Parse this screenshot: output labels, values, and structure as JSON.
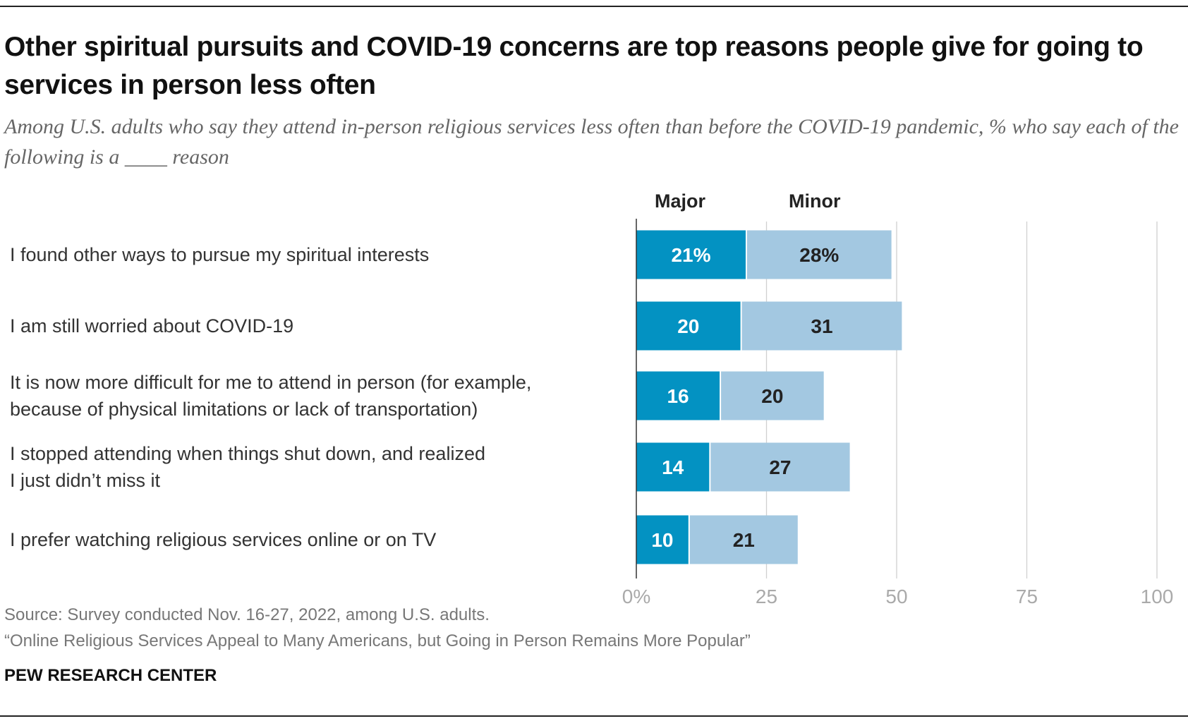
{
  "title": "Other spiritual pursuits and COVID-19 concerns are top reasons people give for going to services in person less often",
  "subtitle": "Among U.S. adults who say they attend in-person religious services less often than before the COVID-19 pandemic, % who say each of the following is a ____ reason",
  "source": "Source: Survey conducted Nov. 16-27, 2022, among U.S. adults.",
  "report": "“Online Religious Services Appeal to Many Americans, but Going in Person Remains More Popular”",
  "brand": "PEW RESEARCH CENTER",
  "chart_data": {
    "type": "bar",
    "orientation": "horizontal",
    "stacked": true,
    "categories": [
      "I found other ways to pursue my spiritual interests",
      "I am still worried about COVID-19",
      "It is now more difficult for me to attend in person (for example, because of physical limitations or lack of transportation)",
      "I stopped attending when things shut down, and realized I just didn’t miss it",
      "I prefer watching religious services online or on TV"
    ],
    "category_lines": [
      [
        "I found other ways to pursue my spiritual interests"
      ],
      [
        "I am still worried about COVID-19"
      ],
      [
        "It is now more difficult for me to attend in person (for example,",
        "because of physical limitations or lack of transportation)"
      ],
      [
        "I stopped attending when things shut down, and realized",
        "I just didn’t miss it"
      ],
      [
        "I prefer watching religious services online or on TV"
      ]
    ],
    "series": [
      {
        "name": "Major",
        "values": [
          21,
          20,
          16,
          14,
          10
        ],
        "labels": [
          "21%",
          "20",
          "16",
          "14",
          "10"
        ],
        "color": "#0392c2",
        "label_color": "#ffffff"
      },
      {
        "name": "Minor",
        "values": [
          28,
          31,
          20,
          27,
          21
        ],
        "labels": [
          "28%",
          "31",
          "20",
          "27",
          "21"
        ],
        "color": "#a3c8e1",
        "label_color": "#222222"
      }
    ],
    "xlim": [
      0,
      100
    ],
    "xticks": [
      0,
      25,
      50,
      75,
      100
    ],
    "xtick_labels": [
      "0%",
      "25",
      "50",
      "75",
      "100"
    ],
    "grid": true,
    "legend": "top, as column headers"
  }
}
